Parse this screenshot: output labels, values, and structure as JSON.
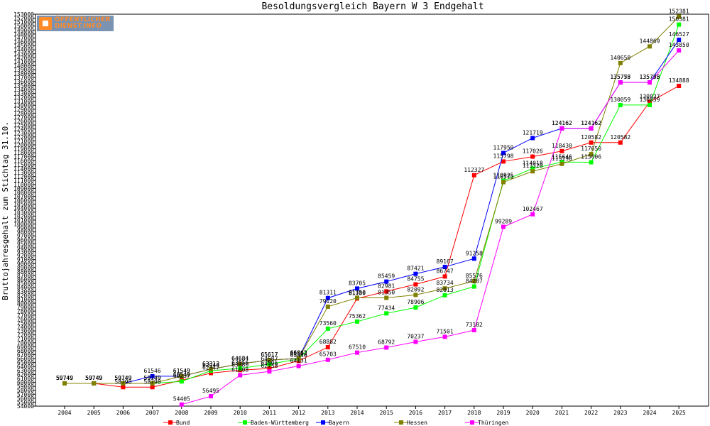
{
  "chart_data": {
    "type": "line",
    "title": "Besoldungsvergleich Bayern W 3 Endgehalt",
    "ylabel": "Bruttojahresgehalt zum Stichtag 31.10.",
    "xlabel": "",
    "ylim": [
      54000,
      153000
    ],
    "ytick_step": 1000,
    "grid": false,
    "legend_position": "bottom",
    "x": [
      "2004",
      "2005",
      "2006",
      "2007",
      "2008",
      "2009",
      "2010",
      "2011",
      "2012",
      "2013",
      "2014",
      "2015",
      "2016",
      "2017",
      "2018",
      "2019",
      "2020",
      "2021",
      "2022",
      "2023",
      "2024",
      "2025"
    ],
    "series": [
      {
        "name": "Bund",
        "color": "#ff0000",
        "values": [
          59749,
          59749,
          58790,
          58790,
          60549,
          62347,
          63080,
          63506,
          65446,
          68882,
          81180,
          82981,
          84755,
          86747,
          112327,
          115798,
          117026,
          118430,
          120582,
          120582,
          130837,
          134888
        ]
      },
      {
        "name": "Baden-Württemberg",
        "color": "#00ff00",
        "values": [
          59749,
          59749,
          59749,
          59749,
          60237,
          62946,
          63556,
          64587,
          65903,
          73560,
          75362,
          77434,
          78906,
          82013,
          84207,
          110925,
          114018,
          115646,
          115606,
          130059,
          130059,
          150381
        ]
      },
      {
        "name": "Bayern",
        "color": "#0000ff",
        "values": [
          59749,
          59749,
          59749,
          61546,
          61549,
          63313,
          64684,
          65617,
          66062,
          81311,
          83705,
          85459,
          87421,
          89167,
          91258,
          117950,
          121719,
          124162,
          124162,
          135773,
          135773,
          146527
        ]
      },
      {
        "name": "Hessen",
        "color": "#808000",
        "values": [
          59749,
          59749,
          59749,
          59749,
          61549,
          63313,
          64684,
          65617,
          66062,
          79120,
          81350,
          81350,
          82092,
          83734,
          85576,
          110575,
          113320,
          115196,
          117650,
          140650,
          144869,
          152381
        ]
      },
      {
        "name": "Thüringen",
        "color": "#ff00ff",
        "values": [
          null,
          null,
          null,
          null,
          54405,
          56495,
          61808,
          62758,
          64131,
          65703,
          67510,
          68792,
          70237,
          71501,
          73182,
          99289,
          102467,
          124162,
          124162,
          135756,
          135756,
          143850
        ]
      }
    ]
  }
}
